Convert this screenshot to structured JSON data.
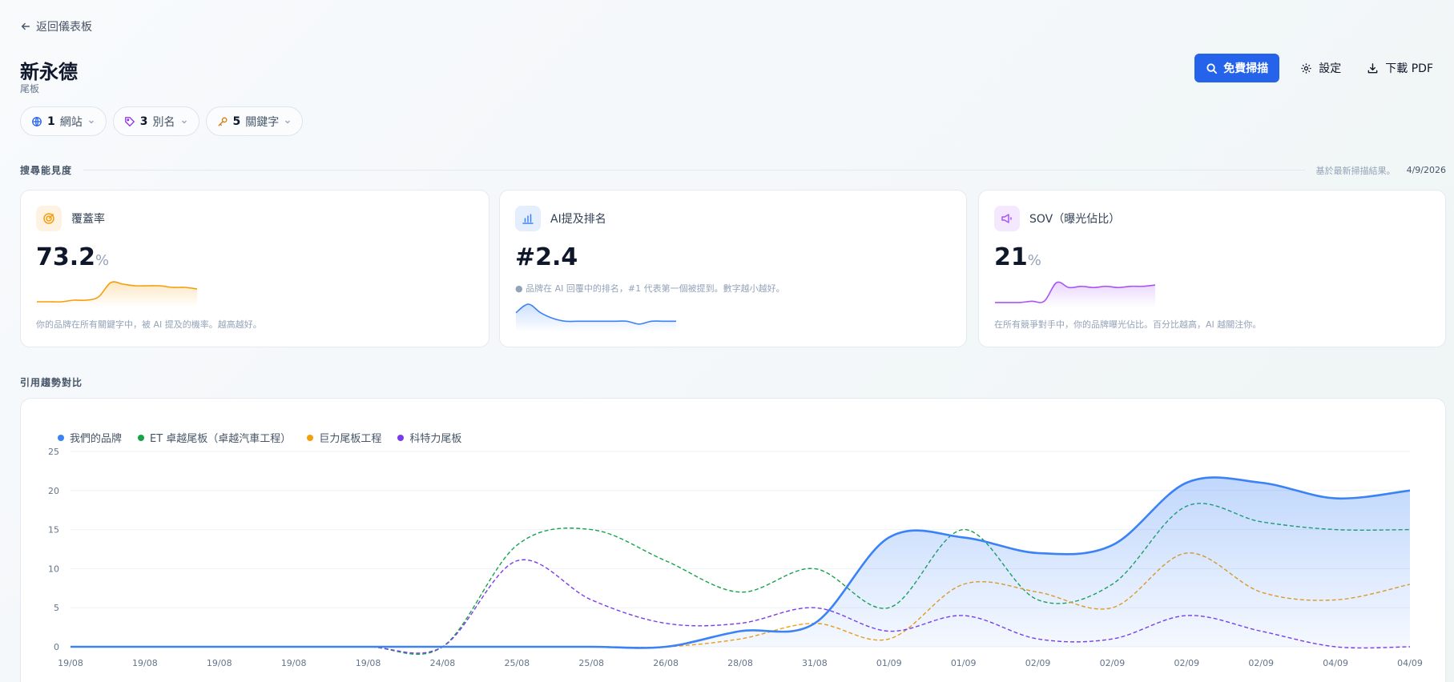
{
  "back": {
    "label": "返回儀表板"
  },
  "page": {
    "title": "新永德",
    "subtitle": "尾板"
  },
  "actions": {
    "scan_label": "免費掃描",
    "settings_label": "設定",
    "pdf_label": "下載 PDF",
    "accent": "#2563eb"
  },
  "chips": [
    {
      "count": "1",
      "label": "網站",
      "icon": "globe-icon",
      "color": "#2563eb"
    },
    {
      "count": "3",
      "label": "別名",
      "icon": "tag-icon",
      "color": "#9333ea"
    },
    {
      "count": "5",
      "label": "關鍵字",
      "icon": "key-icon",
      "color": "#d97706"
    }
  ],
  "visibility": {
    "title": "搜尋能見度",
    "note": "基於最新掃描結果。",
    "date": "4/9/2026",
    "cards": [
      {
        "label": "覆蓋率",
        "value": "73.2",
        "unit": "%",
        "note": "你的品牌在所有關鍵字中，被 AI 提及的機率。越高越好。",
        "color": "#f59e0b",
        "icon": "target-icon",
        "spark": [
          2,
          2,
          2,
          3,
          3,
          5,
          14,
          13,
          12,
          12,
          12,
          11,
          11,
          10
        ]
      },
      {
        "label": "AI提及排名",
        "value": "#2.4",
        "unit": "",
        "note": "品牌在 AI 回覆中的排名，#1 代表第一個被提到。數字越小越好。",
        "color": "#3b82f6",
        "icon": "bar-chart-icon",
        "spark": [
          6,
          9,
          6,
          4,
          3,
          3,
          3,
          3,
          3,
          3,
          2,
          3,
          3,
          3
        ]
      },
      {
        "label": "SOV（曝光佔比）",
        "value": "21",
        "unit": "%",
        "note": "在所有競爭對手中，你的品牌曝光佔比。百分比越高，AI 越關注你。",
        "color": "#a855f7",
        "icon": "megaphone-icon",
        "spark": [
          2,
          2,
          2,
          3,
          3,
          18,
          14,
          15,
          14,
          15,
          14,
          15,
          15,
          16
        ]
      }
    ]
  },
  "trend": {
    "title": "引用趨勢對比",
    "chart_data": {
      "type": "line",
      "categories": [
        "19/08",
        "19/08",
        "19/08",
        "19/08",
        "19/08",
        "24/08",
        "25/08",
        "25/08",
        "26/08",
        "28/08",
        "31/08",
        "01/09",
        "01/09",
        "02/09",
        "02/09",
        "02/09",
        "02/09",
        "04/09",
        "04/09"
      ],
      "ylim": [
        0,
        25
      ],
      "yticks": [
        0,
        5,
        10,
        15,
        20,
        25
      ],
      "grid": true,
      "legend": "top-left",
      "series": [
        {
          "name": "我們的品牌",
          "color": "#3b82f6",
          "values": [
            0,
            0,
            0,
            0,
            0,
            0,
            0,
            0,
            0,
            2,
            3,
            14,
            14,
            12,
            13,
            21,
            21,
            19,
            20
          ]
        },
        {
          "name": "ET 卓越尾板（卓越汽車工程）",
          "color": "#16a34a",
          "values": [
            0,
            0,
            0,
            0,
            0,
            0,
            13,
            15,
            11,
            7,
            10,
            5,
            15,
            6,
            8,
            18,
            16,
            15,
            15
          ]
        },
        {
          "name": "巨力尾板工程",
          "color": "#f59e0b",
          "values": [
            0,
            0,
            0,
            0,
            0,
            0,
            0,
            0,
            0,
            1,
            3,
            1,
            8,
            7,
            5,
            12,
            7,
            6,
            8
          ]
        },
        {
          "name": "科特力尾板",
          "color": "#7c3aed",
          "values": [
            0,
            0,
            0,
            0,
            0,
            0,
            11,
            6,
            3,
            3,
            5,
            2,
            4,
            1,
            1,
            4,
            2,
            0,
            0
          ]
        }
      ]
    }
  }
}
